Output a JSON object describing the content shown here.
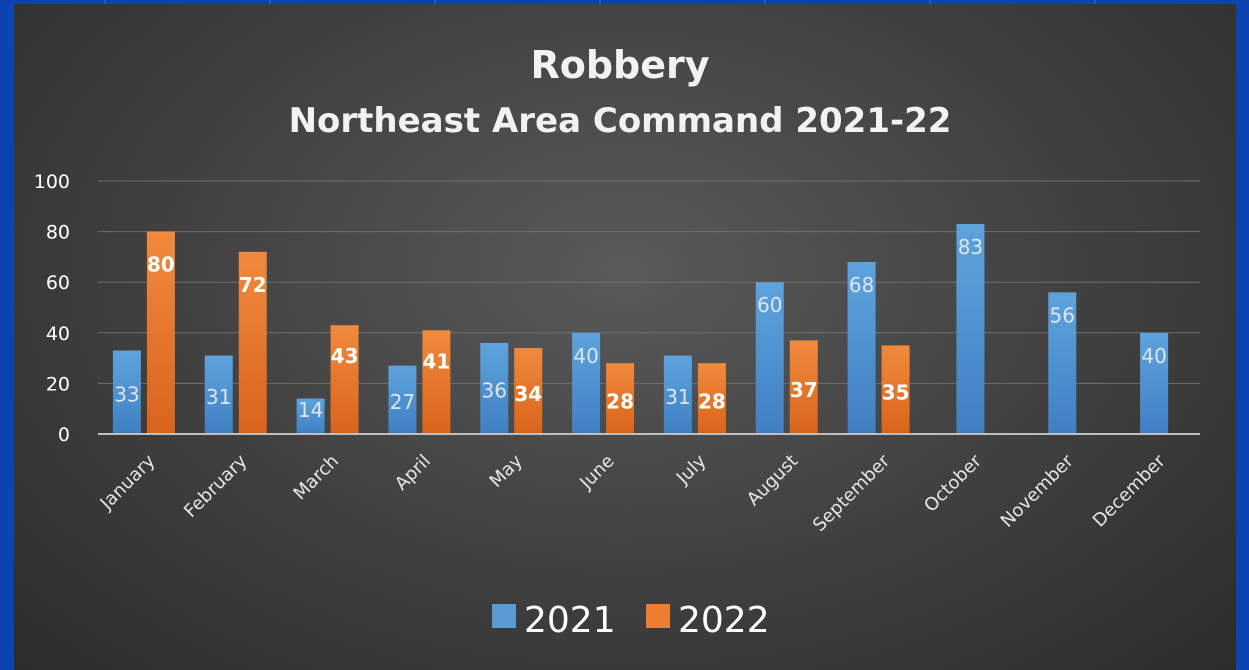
{
  "chart_data": {
    "type": "bar",
    "title": "Robbery",
    "subtitle": "Northeast Area Command 2021-22",
    "categories": [
      "January",
      "February",
      "March",
      "April",
      "May",
      "June",
      "July",
      "August",
      "September",
      "October",
      "November",
      "December"
    ],
    "series": [
      {
        "name": "2021",
        "color": "#5b9bd5",
        "values": [
          33,
          31,
          14,
          27,
          36,
          40,
          31,
          60,
          68,
          83,
          56,
          40
        ]
      },
      {
        "name": "2022",
        "color": "#ed7d31",
        "values": [
          80,
          72,
          43,
          41,
          34,
          28,
          28,
          37,
          35,
          null,
          null,
          null
        ]
      }
    ],
    "xlabel": "",
    "ylabel": "",
    "ylim": [
      0,
      100
    ],
    "yticks": [
      0,
      20,
      40,
      60,
      80,
      100
    ],
    "grid": true,
    "legend": "bottom",
    "data_labels": true
  }
}
